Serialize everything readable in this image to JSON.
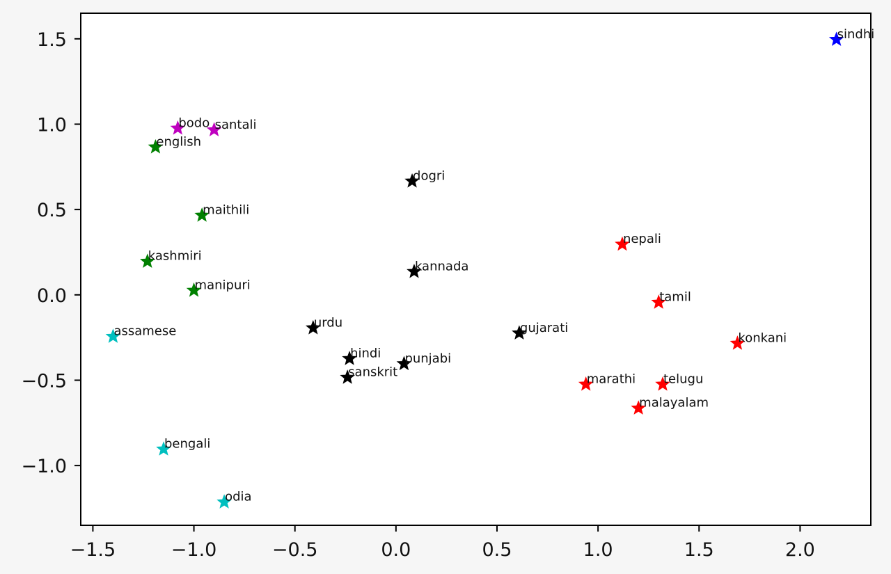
{
  "chart_data": {
    "type": "scatter",
    "title": "",
    "xlabel": "",
    "ylabel": "",
    "xlim": [
      -1.56,
      2.35
    ],
    "ylim": [
      -1.35,
      1.65
    ],
    "xticks": [
      -1.5,
      -1.0,
      -0.5,
      0.0,
      0.5,
      1.0,
      1.5,
      2.0
    ],
    "yticks": [
      -1.0,
      -0.5,
      0.0,
      0.5,
      1.0,
      1.5
    ],
    "xtick_labels": [
      "−1.5",
      "−1.0",
      "−0.5",
      "0.0",
      "0.5",
      "1.0",
      "1.5",
      "2.0"
    ],
    "ytick_labels": [
      "−1.0",
      "−0.5",
      "0.0",
      "0.5",
      "1.0",
      "1.5"
    ],
    "grid": false,
    "marker": "star",
    "points": [
      {
        "label": "sindhi",
        "x": 2.18,
        "y": 1.5,
        "color": "#0000ff"
      },
      {
        "label": "bodo",
        "x": -1.08,
        "y": 0.98,
        "color": "#bf00bf"
      },
      {
        "label": "santali",
        "x": -0.9,
        "y": 0.97,
        "color": "#bf00bf"
      },
      {
        "label": "english",
        "x": -1.19,
        "y": 0.87,
        "color": "#008000"
      },
      {
        "label": "maithili",
        "x": -0.96,
        "y": 0.47,
        "color": "#008000"
      },
      {
        "label": "kashmiri",
        "x": -1.23,
        "y": 0.2,
        "color": "#008000"
      },
      {
        "label": "manipuri",
        "x": -1.0,
        "y": 0.03,
        "color": "#008000"
      },
      {
        "label": "assamese",
        "x": -1.4,
        "y": -0.24,
        "color": "#00bfbf"
      },
      {
        "label": "bengali",
        "x": -1.15,
        "y": -0.9,
        "color": "#00bfbf"
      },
      {
        "label": "odia",
        "x": -0.85,
        "y": -1.21,
        "color": "#00bfbf"
      },
      {
        "label": "dogri",
        "x": 0.08,
        "y": 0.67,
        "color": "#000000"
      },
      {
        "label": "kannada",
        "x": 0.09,
        "y": 0.14,
        "color": "#000000"
      },
      {
        "label": "urdu",
        "x": -0.41,
        "y": -0.19,
        "color": "#000000"
      },
      {
        "label": "hindi",
        "x": -0.23,
        "y": -0.37,
        "color": "#000000"
      },
      {
        "label": "sanskrit",
        "x": -0.24,
        "y": -0.48,
        "color": "#000000"
      },
      {
        "label": "punjabi",
        "x": 0.04,
        "y": -0.4,
        "color": "#000000"
      },
      {
        "label": "gujarati",
        "x": 0.61,
        "y": -0.22,
        "color": "#000000"
      },
      {
        "label": "nepali",
        "x": 1.12,
        "y": 0.3,
        "color": "#ff0000"
      },
      {
        "label": "tamil",
        "x": 1.3,
        "y": -0.04,
        "color": "#ff0000"
      },
      {
        "label": "konkani",
        "x": 1.69,
        "y": -0.28,
        "color": "#ff0000"
      },
      {
        "label": "marathi",
        "x": 0.94,
        "y": -0.52,
        "color": "#ff0000"
      },
      {
        "label": "telugu",
        "x": 1.32,
        "y": -0.52,
        "color": "#ff0000"
      },
      {
        "label": "malayalam",
        "x": 1.2,
        "y": -0.66,
        "color": "#ff0000"
      }
    ]
  }
}
